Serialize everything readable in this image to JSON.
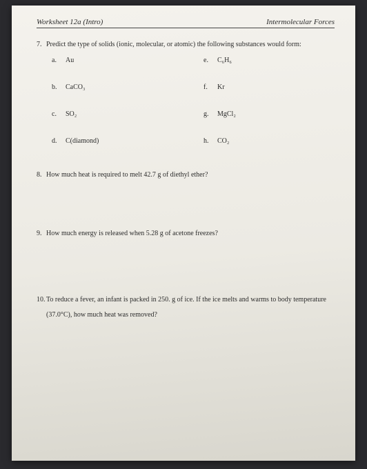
{
  "header": {
    "left": "Worksheet 12a (Intro)",
    "right": "Intermolecular Forces"
  },
  "q7": {
    "num": "7.",
    "prompt": "Predict the type of solids (ionic, molecular, or atomic) the following substances would form:",
    "items": {
      "a": {
        "letter": "a.",
        "text": "Au"
      },
      "b": {
        "letter": "b.",
        "text": "CaCO₃"
      },
      "c": {
        "letter": "c.",
        "text": "SO₂"
      },
      "d": {
        "letter": "d.",
        "text": "C(diamond)"
      },
      "e": {
        "letter": "e.",
        "text": "C₆H₆"
      },
      "f": {
        "letter": "f.",
        "text": "Kr"
      },
      "g": {
        "letter": "g.",
        "text": "MgCl₂"
      },
      "h": {
        "letter": "h.",
        "text": "CO₂"
      }
    }
  },
  "q8": {
    "num": "8.",
    "prompt": "How much heat is required to melt 42.7 g of diethyl ether?"
  },
  "q9": {
    "num": "9.",
    "prompt": "How much energy is released when 5.28 g of acetone freezes?"
  },
  "q10": {
    "num": "10.",
    "prompt": "To reduce a fever, an infant is packed in 250. g of ice. If the ice melts and warms to body temperature (37.0°C), how much heat was removed?"
  },
  "colors": {
    "text": "#2b2b2b",
    "page_bg_top": "#f4f2ed",
    "page_bg_bottom": "#d8d6cd",
    "outer_bg": "#2a2a2e",
    "rule": "#444444"
  }
}
